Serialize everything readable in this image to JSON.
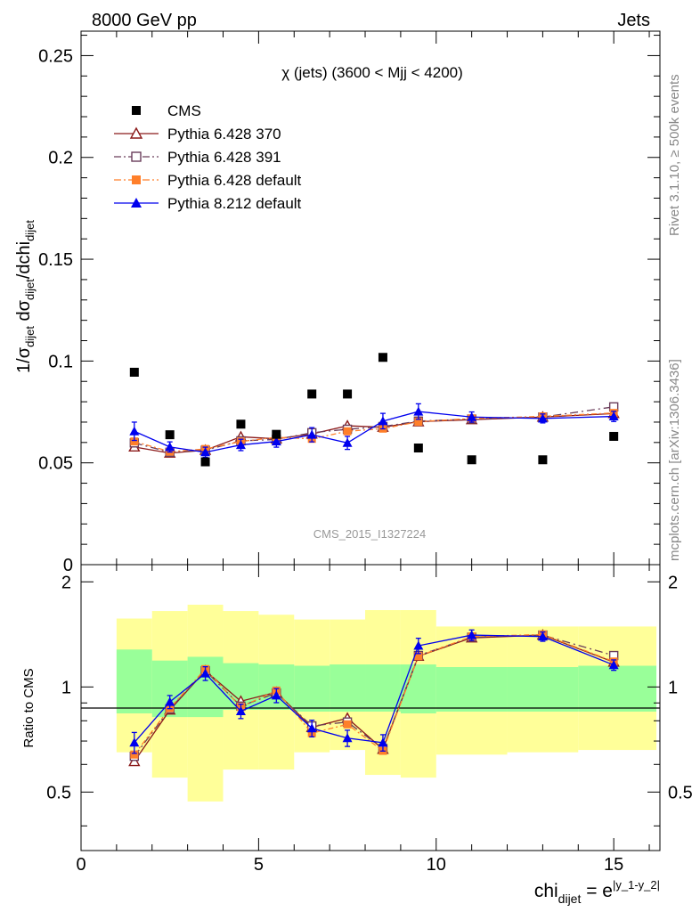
{
  "header": {
    "left": "8000 GeV pp",
    "right": "Jets"
  },
  "side": {
    "rivet": "Rivet 3.1.10, ≥ 500k events",
    "mcplots": "mcplots.cern.ch [arXiv:1306.3436]"
  },
  "chart_data": {
    "type": "scatter",
    "title": "χ (jets) (3600 < Mjj < 4200)",
    "watermark": "CMS_2015_I1327224",
    "xlabel": "chi_dijet = e^|y_1-y_2|",
    "xlabel_parts": {
      "base": "chi",
      "sub": "dijet",
      "eq": " = e",
      "sup": "|y_1-y_2|"
    },
    "ylabel": "1/σ_dijet dσ_dijet/dchi_dijet",
    "ratio_ylabel": "Ratio to CMS",
    "xlim": [
      0,
      16.3
    ],
    "ylim": [
      0,
      0.262
    ],
    "ratio_ylim": [
      0.34,
      2.24
    ],
    "x_ticks": [
      "0",
      "5",
      "10",
      "15"
    ],
    "x_tick_values": [
      0,
      5,
      10,
      15
    ],
    "y_ticks": [
      "0.05",
      "0.1",
      "0.15",
      "0.2",
      "0.25"
    ],
    "y_tick_values": [
      0.05,
      0.1,
      0.15,
      0.2,
      0.25
    ],
    "ratio_ticks": [
      "0.5",
      "1",
      "2"
    ],
    "ratio_tick_values": [
      0.5,
      1,
      2
    ],
    "bins": [
      [
        1,
        2
      ],
      [
        2,
        3
      ],
      [
        3,
        4
      ],
      [
        4,
        5
      ],
      [
        5,
        6
      ],
      [
        6,
        7
      ],
      [
        7,
        8
      ],
      [
        8,
        9
      ],
      [
        9,
        10
      ],
      [
        10,
        12
      ],
      [
        12,
        14
      ],
      [
        14,
        16.2
      ]
    ],
    "x": [
      1.5,
      2.5,
      3.5,
      4.5,
      5.5,
      6.5,
      7.5,
      8.5,
      9.5,
      11,
      13,
      15
    ],
    "cms": [
      0.0945,
      0.0638,
      0.0505,
      0.069,
      0.064,
      0.0838,
      0.0838,
      0.1018,
      0.0573,
      0.0515,
      0.0515,
      0.063
    ],
    "band_green": [
      [
        0.84,
        1.28
      ],
      [
        0.82,
        1.19
      ],
      [
        0.82,
        1.22
      ],
      [
        0.86,
        1.17
      ],
      [
        0.86,
        1.16
      ],
      [
        0.85,
        1.15
      ],
      [
        0.85,
        1.16
      ],
      [
        0.85,
        1.16
      ],
      [
        0.84,
        1.16
      ],
      [
        0.85,
        1.14
      ],
      [
        0.85,
        1.14
      ],
      [
        0.85,
        1.15
      ]
    ],
    "band_yellow": [
      [
        0.65,
        1.57
      ],
      [
        0.55,
        1.65
      ],
      [
        0.47,
        1.72
      ],
      [
        0.58,
        1.65
      ],
      [
        0.58,
        1.61
      ],
      [
        0.65,
        1.56
      ],
      [
        0.66,
        1.56
      ],
      [
        0.56,
        1.66
      ],
      [
        0.55,
        1.66
      ],
      [
        0.64,
        1.49
      ],
      [
        0.65,
        1.49
      ],
      [
        0.66,
        1.49
      ]
    ],
    "legend": [
      {
        "label": "CMS",
        "color": "#000000",
        "marker": "square-filled",
        "line": "none"
      },
      {
        "label": "Pythia 6.428 370",
        "color": "#8b1a1a",
        "marker": "triangle-open",
        "line": "solid"
      },
      {
        "label": "Pythia 6.428 391",
        "color": "#6a3d5a",
        "marker": "square-open",
        "line": "dashdot"
      },
      {
        "label": "Pythia 6.428 default",
        "color": "#ff7f2a",
        "marker": "square-filled",
        "line": "dashdot"
      },
      {
        "label": "Pythia 8.212 default",
        "color": "#0000ee",
        "marker": "triangle-filled",
        "line": "solid"
      }
    ],
    "series": [
      {
        "name": "Pythia 6.428 370",
        "color": "#8b1a1a",
        "marker": "triangle-open",
        "dash": "",
        "values": [
          0.0578,
          0.0548,
          0.0562,
          0.0628,
          0.0618,
          0.0642,
          0.0682,
          0.0675,
          0.0702,
          0.0712,
          0.0725,
          0.0742
        ]
      },
      {
        "name": "Pythia 6.428 391",
        "color": "#6a3d5a",
        "marker": "square-open",
        "dash": "9,4,2,4",
        "values": [
          0.0598,
          0.0552,
          0.0562,
          0.0608,
          0.0615,
          0.0648,
          0.0665,
          0.0678,
          0.0705,
          0.0715,
          0.0725,
          0.0775
        ]
      },
      {
        "name": "Pythia 6.428 default",
        "color": "#ff7f2a",
        "marker": "square-filled",
        "dash": "6,3,2,3",
        "values": [
          0.0605,
          0.0555,
          0.0568,
          0.0605,
          0.0625,
          0.0618,
          0.0655,
          0.0668,
          0.0702,
          0.0718,
          0.0728,
          0.0745
        ]
      },
      {
        "name": "Pythia 8.212 default",
        "color": "#0000ee",
        "marker": "triangle-filled",
        "dash": "",
        "values": [
          0.0655,
          0.0578,
          0.0552,
          0.0588,
          0.0605,
          0.0638,
          0.0598,
          0.0705,
          0.0752,
          0.0725,
          0.0718,
          0.0728
        ],
        "errors": [
          0.0045,
          0.0025,
          0.0025,
          0.0028,
          0.0028,
          0.0035,
          0.0032,
          0.0038,
          0.0038,
          0.0025,
          0.0022,
          0.0025
        ]
      }
    ]
  }
}
